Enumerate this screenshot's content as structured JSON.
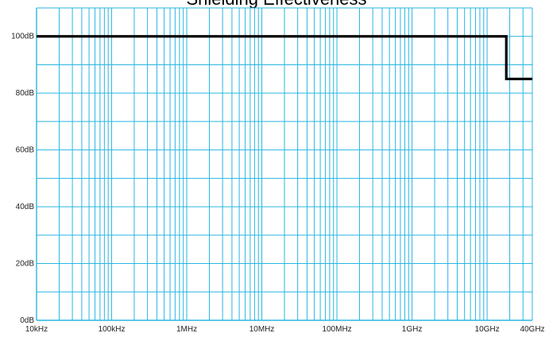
{
  "chart_data": {
    "type": "line",
    "title": "Shielding Effectiveness",
    "xlabel": "",
    "ylabel": "",
    "x_scale": "log",
    "xlim": [
      "10kHz",
      "40GHz"
    ],
    "xlim_hz": [
      10000,
      40000000000
    ],
    "ylim": [
      0,
      110
    ],
    "grid": true,
    "x_tick_labels": [
      {
        "label": "10kHz",
        "hz": 10000
      },
      {
        "label": "100kHz",
        "hz": 100000
      },
      {
        "label": "1MHz",
        "hz": 1000000
      },
      {
        "label": "10MHz",
        "hz": 10000000
      },
      {
        "label": "100MHz",
        "hz": 100000000
      },
      {
        "label": "1GHz",
        "hz": 1000000000
      },
      {
        "label": "10GHz",
        "hz": 10000000000
      },
      {
        "label": "40GHz",
        "hz": 40000000000
      }
    ],
    "y_tick_labels": [
      {
        "label": "0dB",
        "value": 0
      },
      {
        "label": "20dB",
        "value": 20
      },
      {
        "label": "40dB",
        "value": 40
      },
      {
        "label": "60dB",
        "value": 60
      },
      {
        "label": "80dB",
        "value": 80
      },
      {
        "label": "100dB",
        "value": 100
      }
    ],
    "series": [
      {
        "points": [
          {
            "x_hz": 10000,
            "y": 100
          },
          {
            "x_hz": 18000000000,
            "y": 100
          },
          {
            "x_hz": 18000000000,
            "y": 85
          },
          {
            "x_hz": 40000000000,
            "y": 85
          }
        ]
      }
    ],
    "colors": {
      "grid": "#29b6e3",
      "line": "#000000",
      "text": "#222222"
    }
  }
}
